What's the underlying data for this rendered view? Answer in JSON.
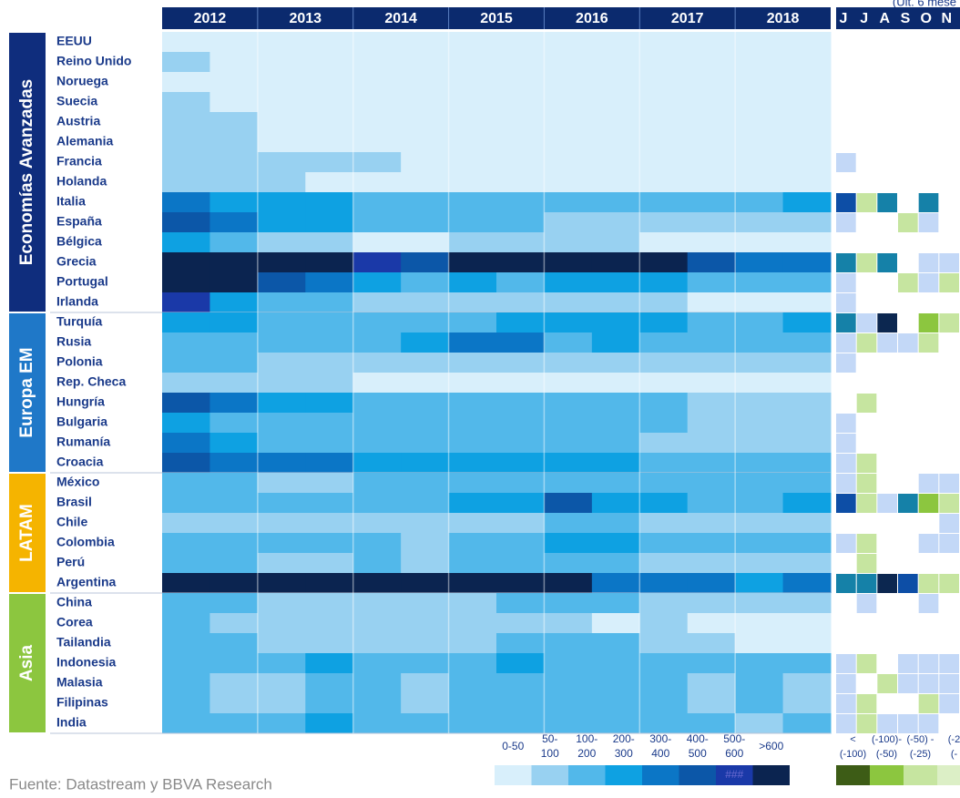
{
  "chart_data": {
    "type": "heatmap",
    "years": [
      "2012",
      "2013",
      "2014",
      "2015",
      "2016",
      "2017",
      "2018"
    ],
    "bins": [
      {
        "label": [
          "0-50"
        ],
        "color": "#d8effb"
      },
      {
        "label": [
          "50-",
          "100"
        ],
        "color": "#98d1f1"
      },
      {
        "label": [
          "100-",
          "200"
        ],
        "color": "#52b8ea"
      },
      {
        "label": [
          "200-",
          "300"
        ],
        "color": "#0ea1e2"
      },
      {
        "label": [
          "300-",
          "400"
        ],
        "color": "#0b76c6"
      },
      {
        "label": [
          "400-",
          "500"
        ],
        "color": "#0c57a8"
      },
      {
        "label": [
          "500-",
          "600"
        ],
        "color": "#1a39a8"
      },
      {
        "label": [
          ">600"
        ],
        "color": "#0b2450"
      }
    ],
    "overflow_text": "###",
    "header_color": "#0b2a6e",
    "groups": [
      {
        "name": "Economías Avanzadas",
        "color": "#0f2d7d",
        "countries": [
          "EEUU",
          "Reino Unido",
          "Noruega",
          "Suecia",
          "Austria",
          "Alemania",
          "Francia",
          "Holanda",
          "Italia",
          "España",
          "Bélgica",
          "Grecia",
          "Portugal",
          "Irlanda"
        ],
        "levels": [
          [
            0,
            0,
            0,
            0,
            0,
            0,
            0,
            0,
            0,
            0,
            0,
            0,
            0,
            0
          ],
          [
            1,
            0,
            0,
            0,
            0,
            0,
            0,
            0,
            0,
            0,
            0,
            0,
            0,
            0
          ],
          [
            0,
            0,
            0,
            0,
            0,
            0,
            0,
            0,
            0,
            0,
            0,
            0,
            0,
            0
          ],
          [
            1,
            0,
            0,
            0,
            0,
            0,
            0,
            0,
            0,
            0,
            0,
            0,
            0,
            0
          ],
          [
            1,
            1,
            0,
            0,
            0,
            0,
            0,
            0,
            0,
            0,
            0,
            0,
            0,
            0
          ],
          [
            1,
            1,
            0,
            0,
            0,
            0,
            0,
            0,
            0,
            0,
            0,
            0,
            0,
            0
          ],
          [
            1,
            1,
            1,
            1,
            1,
            0,
            0,
            0,
            0,
            0,
            0,
            0,
            0,
            0
          ],
          [
            1,
            1,
            1,
            0,
            0,
            0,
            0,
            0,
            0,
            0,
            0,
            0,
            0,
            0
          ],
          [
            4,
            3,
            3,
            3,
            2,
            2,
            2,
            2,
            2,
            2,
            2,
            2,
            2,
            3
          ],
          [
            5,
            4,
            3,
            3,
            2,
            2,
            2,
            2,
            1,
            1,
            1,
            1,
            1,
            1
          ],
          [
            3,
            2,
            1,
            1,
            0,
            0,
            1,
            1,
            1,
            1,
            0,
            0,
            0,
            0
          ],
          [
            7,
            7,
            7,
            7,
            6,
            5,
            7,
            7,
            7,
            7,
            7,
            5,
            4,
            4
          ],
          [
            7,
            7,
            5,
            4,
            3,
            2,
            3,
            2,
            3,
            3,
            3,
            2,
            2,
            2
          ],
          [
            6,
            3,
            2,
            2,
            1,
            1,
            1,
            1,
            1,
            1,
            1,
            0,
            0,
            0
          ]
        ],
        "changes": [
          [
            null,
            null,
            null,
            null,
            null,
            null
          ],
          [
            null,
            null,
            null,
            null,
            null,
            null
          ],
          [
            null,
            null,
            null,
            null,
            null,
            null
          ],
          [
            null,
            null,
            null,
            null,
            null,
            null
          ],
          [
            null,
            null,
            null,
            null,
            null,
            null
          ],
          [
            null,
            null,
            null,
            null,
            null,
            null
          ],
          [
            4,
            null,
            null,
            null,
            null,
            null
          ],
          [
            null,
            null,
            null,
            null,
            null,
            null
          ],
          [
            6,
            2,
            5,
            null,
            5,
            null
          ],
          [
            4,
            null,
            null,
            2,
            4,
            null
          ],
          [
            null,
            null,
            null,
            null,
            null,
            null
          ],
          [
            5,
            2,
            5,
            null,
            4,
            4
          ],
          [
            4,
            null,
            null,
            2,
            4,
            2
          ],
          [
            4,
            null,
            null,
            null,
            null,
            null
          ]
        ]
      },
      {
        "name": "Europa EM",
        "color": "#1f78c8",
        "countries": [
          "Turquía",
          "Rusia",
          "Polonia",
          "Rep. Checa",
          "Hungría",
          "Bulgaria",
          "Rumanía",
          "Croacia"
        ],
        "levels": [
          [
            3,
            3,
            2,
            2,
            2,
            2,
            2,
            3,
            3,
            3,
            3,
            2,
            2,
            3
          ],
          [
            2,
            2,
            2,
            2,
            2,
            3,
            4,
            4,
            2,
            3,
            2,
            2,
            2,
            2
          ],
          [
            2,
            2,
            1,
            1,
            1,
            1,
            1,
            1,
            1,
            1,
            1,
            1,
            1,
            1
          ],
          [
            1,
            1,
            1,
            1,
            0,
            0,
            0,
            0,
            0,
            0,
            0,
            0,
            0,
            0
          ],
          [
            5,
            4,
            3,
            3,
            2,
            2,
            2,
            2,
            2,
            2,
            2,
            1,
            1,
            1
          ],
          [
            3,
            2,
            2,
            2,
            2,
            2,
            2,
            2,
            2,
            2,
            2,
            1,
            1,
            1
          ],
          [
            4,
            3,
            2,
            2,
            2,
            2,
            2,
            2,
            2,
            2,
            1,
            1,
            1,
            1
          ],
          [
            5,
            4,
            4,
            4,
            3,
            3,
            3,
            3,
            3,
            3,
            2,
            2,
            2,
            2
          ]
        ],
        "changes": [
          [
            5,
            4,
            7,
            null,
            1,
            2
          ],
          [
            4,
            2,
            4,
            4,
            2,
            null
          ],
          [
            4,
            null,
            null,
            null,
            null,
            null
          ],
          [
            null,
            null,
            null,
            null,
            null,
            null
          ],
          [
            null,
            2,
            null,
            null,
            null,
            null
          ],
          [
            4,
            null,
            null,
            null,
            null,
            null
          ],
          [
            4,
            null,
            null,
            null,
            null,
            null
          ],
          [
            4,
            2,
            null,
            null,
            null,
            null
          ]
        ]
      },
      {
        "name": "LATAM",
        "color": "#f5b400",
        "countries": [
          "México",
          "Brasil",
          "Chile",
          "Colombia",
          "Perú",
          "Argentina"
        ],
        "levels": [
          [
            2,
            2,
            1,
            1,
            2,
            2,
            2,
            2,
            2,
            2,
            2,
            2,
            2,
            2
          ],
          [
            2,
            2,
            2,
            2,
            2,
            2,
            3,
            3,
            5,
            3,
            3,
            2,
            2,
            3
          ],
          [
            1,
            1,
            1,
            1,
            1,
            1,
            1,
            1,
            2,
            2,
            1,
            1,
            1,
            1
          ],
          [
            2,
            2,
            2,
            2,
            2,
            1,
            2,
            2,
            3,
            3,
            2,
            2,
            2,
            2
          ],
          [
            2,
            2,
            1,
            1,
            2,
            1,
            2,
            2,
            2,
            2,
            1,
            1,
            1,
            1
          ],
          [
            7,
            7,
            7,
            7,
            7,
            7,
            7,
            7,
            7,
            4,
            4,
            4,
            3,
            4
          ]
        ],
        "changes": [
          [
            4,
            2,
            null,
            null,
            4,
            4
          ],
          [
            6,
            2,
            4,
            5,
            1,
            2
          ],
          [
            null,
            null,
            null,
            null,
            null,
            4
          ],
          [
            4,
            2,
            null,
            null,
            4,
            4
          ],
          [
            null,
            2,
            null,
            null,
            null,
            null
          ],
          [
            5,
            5,
            7,
            6,
            2,
            2
          ]
        ]
      },
      {
        "name": "Asia",
        "color": "#8cc63f",
        "countries": [
          "China",
          "Corea",
          "Tailandia",
          "Indonesia",
          "Malasia",
          "Filipinas",
          "India"
        ],
        "levels": [
          [
            2,
            2,
            1,
            1,
            1,
            1,
            1,
            2,
            2,
            2,
            1,
            1,
            1,
            1
          ],
          [
            2,
            1,
            1,
            1,
            1,
            1,
            1,
            1,
            1,
            0,
            1,
            0,
            0,
            0
          ],
          [
            2,
            2,
            1,
            1,
            1,
            1,
            1,
            2,
            2,
            2,
            1,
            1,
            0,
            0
          ],
          [
            2,
            2,
            2,
            3,
            2,
            2,
            2,
            3,
            2,
            2,
            2,
            2,
            2,
            2
          ],
          [
            2,
            1,
            1,
            2,
            2,
            1,
            2,
            2,
            2,
            2,
            2,
            1,
            2,
            1
          ],
          [
            2,
            1,
            1,
            2,
            2,
            1,
            2,
            2,
            2,
            2,
            2,
            1,
            2,
            1
          ],
          [
            2,
            2,
            2,
            3,
            2,
            2,
            2,
            2,
            2,
            2,
            2,
            2,
            1,
            2
          ]
        ],
        "changes": [
          [
            null,
            4,
            null,
            null,
            4,
            null
          ],
          [
            null,
            null,
            null,
            null,
            null,
            null
          ],
          [
            null,
            null,
            null,
            null,
            null,
            null
          ],
          [
            4,
            2,
            null,
            4,
            4,
            4
          ],
          [
            4,
            null,
            2,
            4,
            4,
            4
          ],
          [
            4,
            2,
            null,
            null,
            2,
            4
          ],
          [
            4,
            2,
            4,
            4,
            4,
            null
          ]
        ]
      }
    ],
    "right_panel": {
      "subtitle": "(Ult. 6 mese",
      "months": [
        "J",
        "J",
        "A",
        "S",
        "O",
        "N"
      ],
      "palette": [
        "#3d5c16",
        "#8cc63f",
        "#c6e5a0",
        "#dcefc6",
        "#c3d8f7",
        "#1581a8",
        "#0d4ea6",
        "#0c2750"
      ],
      "legend": [
        {
          "label": [
            "<",
            "(-100)"
          ],
          "color": "#3d5c16"
        },
        {
          "label": [
            "(-100)-",
            "(-50)"
          ],
          "color": "#8cc63f"
        },
        {
          "label": [
            "(-50) -",
            "(-25)"
          ],
          "color": "#c6e5a0"
        },
        {
          "label": [
            "(-2",
            "(-"
          ],
          "color": "#dcefc6"
        }
      ]
    },
    "source": "Fuente: Datastream y BBVA Research"
  }
}
